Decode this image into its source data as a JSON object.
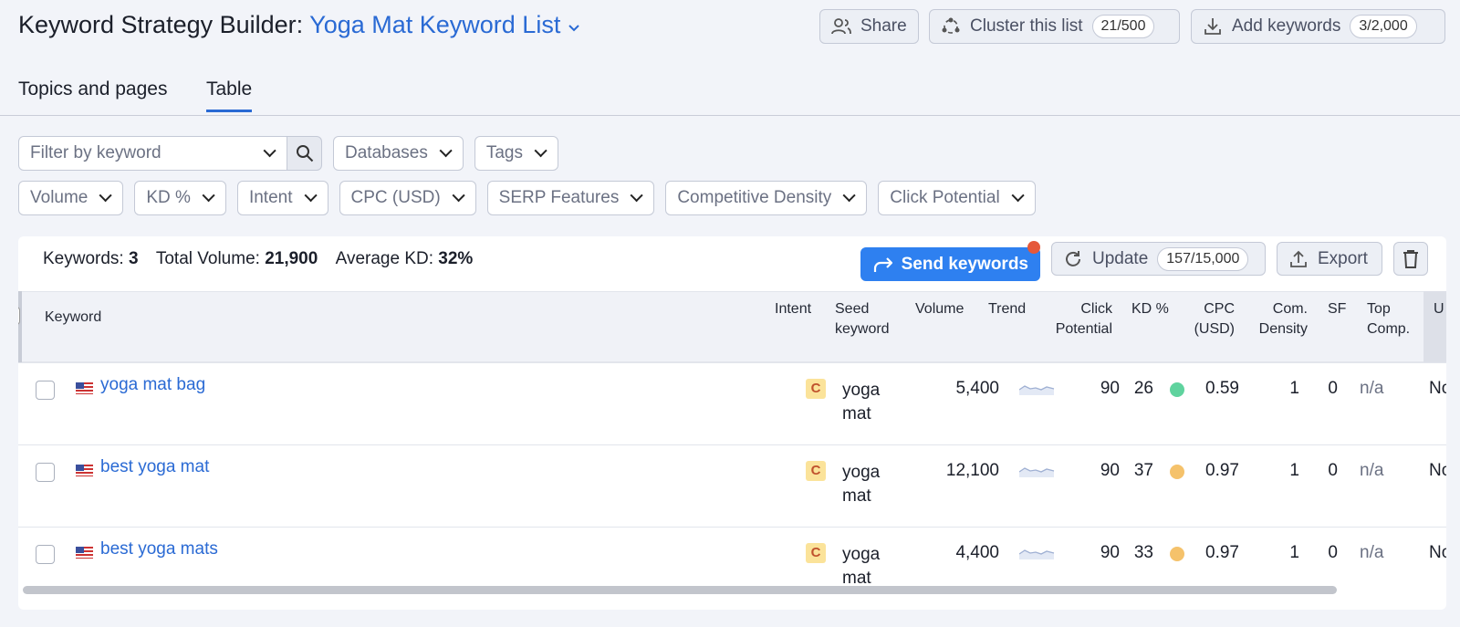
{
  "header": {
    "title": "Keyword Strategy Builder:",
    "list_name": "Yoga Mat Keyword List",
    "share": "Share",
    "cluster": {
      "label": "Cluster this list",
      "count": "21/500"
    },
    "add": {
      "label": "Add keywords",
      "count": "3/2,000"
    }
  },
  "tabs": [
    "Topics and pages",
    "Table"
  ],
  "active_tab": 1,
  "filters": {
    "search_placeholder": "Filter by keyword",
    "row1": [
      "Databases",
      "Tags"
    ],
    "row2": [
      "Volume",
      "KD %",
      "Intent",
      "CPC (USD)",
      "SERP Features",
      "Competitive Density",
      "Click Potential"
    ]
  },
  "summary": {
    "keywords_label": "Keywords:",
    "keywords": 3,
    "volume_label": "Total Volume:",
    "volume": "21,900",
    "kd_label": "Average KD:",
    "kd": "32%"
  },
  "actions": {
    "send": "Send keywords",
    "update": {
      "label": "Update",
      "count": "157/15,000"
    },
    "export": "Export"
  },
  "table": {
    "columns": [
      "Keyword",
      "Intent",
      "Seed keyword",
      "Volume",
      "Trend",
      "Click Potential",
      "KD %",
      "CPC (USD)",
      "Com. Density",
      "SF",
      "Top Comp.",
      "U"
    ],
    "rows": [
      {
        "keyword": "yoga mat bag",
        "intent": "C",
        "seed": "yoga mat",
        "volume": "5,400",
        "click_potential": 90,
        "kd": 26,
        "kd_color": "#5fd39e",
        "cpc": 0.59,
        "com_density": 1,
        "sf": 0,
        "top_comp": "n/a",
        "last": "No"
      },
      {
        "keyword": "best yoga mat",
        "intent": "C",
        "seed": "yoga mat",
        "volume": "12,100",
        "click_potential": 90,
        "kd": 37,
        "kd_color": "#f5c26b",
        "cpc": 0.97,
        "com_density": 1,
        "sf": 0,
        "top_comp": "n/a",
        "last": "No"
      },
      {
        "keyword": "best yoga mats",
        "intent": "C",
        "seed": "yoga mat",
        "volume": "4,400",
        "click_potential": 90,
        "kd": 33,
        "kd_color": "#f5c26b",
        "cpc": 0.97,
        "com_density": 1,
        "sf": 0,
        "top_comp": "n/a",
        "last": "No"
      }
    ]
  }
}
